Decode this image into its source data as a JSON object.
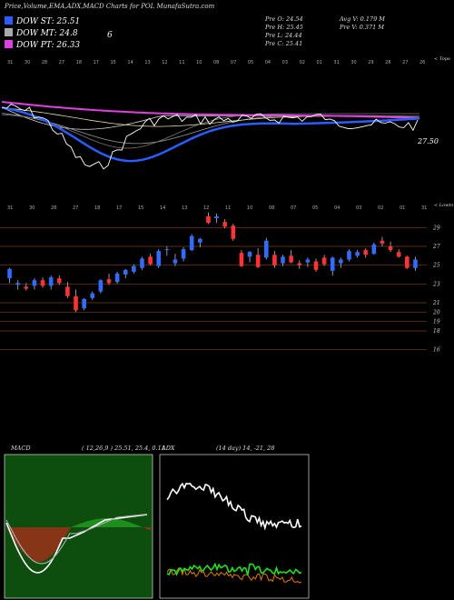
{
  "header": {
    "title": "Price,Volume,EMA,ADX,MACD Charts for POL  MunafaSutra.com"
  },
  "legend": [
    {
      "label": "DOW ST",
      "value": "25.51",
      "color": "#2a5cff"
    },
    {
      "label": "DOW MT",
      "value": "24.8",
      "color": "#aaaaaa"
    },
    {
      "label": "DOW PT",
      "value": "26.33",
      "color": "#e040e0"
    }
  ],
  "legend_extra": "6",
  "ohlc": {
    "open": "Pre   O: 24.54",
    "high": "Pre   H: 25.45",
    "low": "Pre   L: 24.44",
    "close": "Pre   C: 25.41",
    "avg_vol": "Avg V: 0.179 M",
    "pre_vol": "Pre   V: 0.371 M"
  },
  "top_chart": {
    "right_label": "< Topo",
    "last_value": "27.50",
    "ticks": [
      "31",
      "30",
      "28",
      "27",
      "18",
      "17",
      "15",
      "14",
      "13",
      "12",
      "11",
      "10",
      "08",
      "07",
      "05",
      "04",
      "03",
      "02",
      "01",
      "31",
      "30",
      "29",
      "28",
      "27",
      "26"
    ]
  },
  "price_chart": {
    "right_label": "< Lowto",
    "ticks": [
      "31",
      "30",
      "28",
      "27",
      "18",
      "17",
      "15",
      "14",
      "13",
      "12",
      "11",
      "10",
      "08",
      "07",
      "05",
      "04",
      "03",
      "02",
      "01",
      "31"
    ],
    "y_levels": [
      29,
      27,
      25,
      23,
      21,
      20,
      19,
      18,
      16
    ]
  },
  "chart_data": [
    {
      "type": "candlestick",
      "title": "Price",
      "ylim": [
        15,
        30
      ],
      "candles": [
        {
          "o": 23.6,
          "h": 24.7,
          "l": 23.1,
          "c": 24.6
        },
        {
          "o": 22.9,
          "h": 23.4,
          "l": 22.4,
          "c": 23.1
        },
        {
          "o": 22.7,
          "h": 23.1,
          "l": 22.3,
          "c": 22.5
        },
        {
          "o": 22.8,
          "h": 23.6,
          "l": 22.4,
          "c": 23.4
        },
        {
          "o": 23.4,
          "h": 23.7,
          "l": 22.6,
          "c": 22.8
        },
        {
          "o": 22.8,
          "h": 23.9,
          "l": 22.4,
          "c": 23.7
        },
        {
          "o": 23.6,
          "h": 23.9,
          "l": 22.9,
          "c": 23.1
        },
        {
          "o": 22.7,
          "h": 23.2,
          "l": 21.5,
          "c": 21.7
        },
        {
          "o": 21.7,
          "h": 22.4,
          "l": 20.0,
          "c": 20.2
        },
        {
          "o": 20.4,
          "h": 21.5,
          "l": 20.2,
          "c": 21.4
        },
        {
          "o": 21.5,
          "h": 22.2,
          "l": 21.3,
          "c": 22.0
        },
        {
          "o": 22.2,
          "h": 23.5,
          "l": 22.0,
          "c": 23.4
        },
        {
          "o": 23.5,
          "h": 24.1,
          "l": 22.9,
          "c": 23.1
        },
        {
          "o": 23.2,
          "h": 24.3,
          "l": 23.0,
          "c": 24.1
        },
        {
          "o": 24.0,
          "h": 24.6,
          "l": 23.6,
          "c": 24.5
        },
        {
          "o": 24.3,
          "h": 25.1,
          "l": 24.1,
          "c": 24.9
        },
        {
          "o": 24.7,
          "h": 25.9,
          "l": 24.5,
          "c": 25.7
        },
        {
          "o": 25.9,
          "h": 26.2,
          "l": 25.0,
          "c": 25.1
        },
        {
          "o": 24.9,
          "h": 26.7,
          "l": 24.7,
          "c": 26.5
        },
        {
          "o": 26.6,
          "h": 27.0,
          "l": 26.0,
          "c": 26.7
        },
        {
          "o": 25.2,
          "h": 26.2,
          "l": 24.9,
          "c": 25.6
        },
        {
          "o": 25.7,
          "h": 26.9,
          "l": 25.4,
          "c": 26.7
        },
        {
          "o": 26.6,
          "h": 28.3,
          "l": 26.5,
          "c": 28.1
        },
        {
          "o": 27.4,
          "h": 27.9,
          "l": 26.9,
          "c": 27.8
        },
        {
          "o": 30.2,
          "h": 30.6,
          "l": 29.4,
          "c": 29.5
        },
        {
          "o": 30.0,
          "h": 30.5,
          "l": 29.5,
          "c": 30.2
        },
        {
          "o": 29.6,
          "h": 29.9,
          "l": 28.9,
          "c": 29.1
        },
        {
          "o": 29.2,
          "h": 29.4,
          "l": 27.6,
          "c": 27.8
        },
        {
          "o": 26.3,
          "h": 26.6,
          "l": 24.8,
          "c": 24.9
        },
        {
          "o": 25.9,
          "h": 26.5,
          "l": 25.3,
          "c": 26.4
        },
        {
          "o": 26.1,
          "h": 26.8,
          "l": 24.7,
          "c": 24.8
        },
        {
          "o": 25.8,
          "h": 27.9,
          "l": 25.6,
          "c": 27.6
        },
        {
          "o": 26.1,
          "h": 26.5,
          "l": 24.7,
          "c": 25.0
        },
        {
          "o": 25.2,
          "h": 26.1,
          "l": 24.9,
          "c": 25.9
        },
        {
          "o": 26.0,
          "h": 26.6,
          "l": 25.2,
          "c": 25.3
        },
        {
          "o": 25.2,
          "h": 25.5,
          "l": 24.6,
          "c": 25.0
        },
        {
          "o": 25.3,
          "h": 25.8,
          "l": 24.8,
          "c": 25.6
        },
        {
          "o": 25.4,
          "h": 25.7,
          "l": 24.3,
          "c": 24.5
        },
        {
          "o": 25.8,
          "h": 26.1,
          "l": 24.9,
          "c": 25.1
        },
        {
          "o": 24.4,
          "h": 25.9,
          "l": 23.9,
          "c": 25.8
        },
        {
          "o": 25.2,
          "h": 25.8,
          "l": 24.7,
          "c": 25.6
        },
        {
          "o": 25.6,
          "h": 26.7,
          "l": 25.4,
          "c": 26.5
        },
        {
          "o": 26.0,
          "h": 26.6,
          "l": 25.8,
          "c": 26.4
        },
        {
          "o": 26.6,
          "h": 26.8,
          "l": 25.8,
          "c": 26.1
        },
        {
          "o": 26.2,
          "h": 27.4,
          "l": 26.1,
          "c": 27.2
        },
        {
          "o": 27.6,
          "h": 28.0,
          "l": 27.0,
          "c": 27.3
        },
        {
          "o": 27.0,
          "h": 27.5,
          "l": 26.4,
          "c": 26.6
        },
        {
          "o": 26.4,
          "h": 26.7,
          "l": 25.8,
          "c": 25.9
        },
        {
          "o": 25.9,
          "h": 26.0,
          "l": 24.6,
          "c": 24.7
        },
        {
          "o": 24.7,
          "h": 25.9,
          "l": 24.4,
          "c": 25.6
        }
      ]
    },
    {
      "type": "line",
      "title": "MACD",
      "caption": "MACD",
      "params": "( 12,26,9 ) 25.51, 25.4, 0.11",
      "ylim": [
        -3,
        3
      ]
    },
    {
      "type": "line",
      "title": "ADX",
      "caption": "ADX",
      "params": "(14 day) 14, -21, 28",
      "ylim": [
        0,
        60
      ]
    }
  ]
}
